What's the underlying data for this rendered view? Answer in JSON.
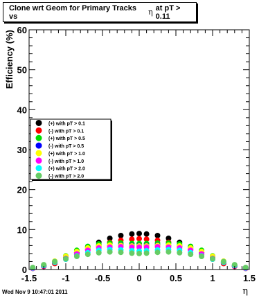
{
  "chart_data": {
    "type": "scatter",
    "title_prefix": "Clone wrt Geom for Primary Tracks vs",
    "title_var": "η",
    "title_suffix": "at pT > 0.11",
    "xlabel": "η",
    "ylabel": "Efficiency (%)",
    "xlim": [
      -1.5,
      1.5
    ],
    "ylim": [
      0,
      60
    ],
    "x_ticks": [
      -1.5,
      -1,
      -0.5,
      0,
      0.5,
      1,
      1.5
    ],
    "y_ticks": [
      0,
      10,
      20,
      30,
      40,
      50,
      60
    ],
    "x_tick_labels": [
      "-1.5",
      "-1",
      "-0.5",
      "0",
      "0.5",
      "1",
      "1.5"
    ],
    "y_tick_labels": [
      "0",
      "10",
      "20",
      "30",
      "40",
      "50",
      "60"
    ],
    "grid": false,
    "legend_position": "left-middle",
    "series": [
      {
        "name": "(+) with pT > 0.1",
        "color": "#000000",
        "points": [
          [
            -1.45,
            0.3
          ],
          [
            -1.3,
            0.8
          ],
          [
            -1.15,
            1.6
          ],
          [
            -1.0,
            2.8
          ],
          [
            -0.85,
            4.2
          ],
          [
            -0.7,
            5.6
          ],
          [
            -0.55,
            6.8
          ],
          [
            -0.4,
            7.8
          ],
          [
            -0.25,
            8.5
          ],
          [
            -0.1,
            8.9
          ],
          [
            0.0,
            9.0
          ],
          [
            0.1,
            8.9
          ],
          [
            0.25,
            8.5
          ],
          [
            0.4,
            7.8
          ],
          [
            0.55,
            6.8
          ],
          [
            0.7,
            5.6
          ],
          [
            0.85,
            4.2
          ],
          [
            1.0,
            2.8
          ],
          [
            1.15,
            1.6
          ],
          [
            1.3,
            0.8
          ],
          [
            1.45,
            0.3
          ]
        ]
      },
      {
        "name": "(-) with pT > 0.1",
        "color": "#ff0000",
        "points": [
          [
            -1.45,
            0.3
          ],
          [
            -1.3,
            0.8
          ],
          [
            -1.15,
            1.5
          ],
          [
            -1.0,
            2.6
          ],
          [
            -0.85,
            3.8
          ],
          [
            -0.7,
            5.0
          ],
          [
            -0.55,
            6.0
          ],
          [
            -0.4,
            6.8
          ],
          [
            -0.25,
            7.3
          ],
          [
            -0.1,
            7.6
          ],
          [
            0.0,
            7.7
          ],
          [
            0.1,
            7.6
          ],
          [
            0.25,
            7.3
          ],
          [
            0.4,
            6.8
          ],
          [
            0.55,
            6.0
          ],
          [
            0.7,
            5.0
          ],
          [
            0.85,
            3.8
          ],
          [
            1.0,
            2.6
          ],
          [
            1.15,
            1.5
          ],
          [
            1.3,
            0.8
          ],
          [
            1.45,
            0.3
          ]
        ]
      },
      {
        "name": "(+) with pT > 0.5",
        "color": "#00dd00",
        "points": [
          [
            -1.45,
            0.3
          ],
          [
            -1.3,
            1.0
          ],
          [
            -1.15,
            2.0
          ],
          [
            -1.0,
            3.4
          ],
          [
            -0.85,
            4.8
          ],
          [
            -0.7,
            5.8
          ],
          [
            -0.55,
            6.4
          ],
          [
            -0.4,
            6.6
          ],
          [
            -0.25,
            6.6
          ],
          [
            -0.1,
            6.5
          ],
          [
            0.0,
            6.5
          ],
          [
            0.1,
            6.5
          ],
          [
            0.25,
            6.6
          ],
          [
            0.4,
            6.6
          ],
          [
            0.55,
            6.4
          ],
          [
            0.7,
            5.8
          ],
          [
            0.85,
            4.8
          ],
          [
            1.0,
            3.4
          ],
          [
            1.15,
            2.0
          ],
          [
            1.3,
            1.0
          ],
          [
            1.45,
            0.3
          ]
        ]
      },
      {
        "name": "(-) with pT > 0.5",
        "color": "#0000ff",
        "points": [
          [
            -1.45,
            0.3
          ],
          [
            -1.3,
            0.9
          ],
          [
            -1.15,
            1.8
          ],
          [
            -1.0,
            3.0
          ],
          [
            -0.85,
            4.2
          ],
          [
            -0.7,
            5.2
          ],
          [
            -0.55,
            5.8
          ],
          [
            -0.4,
            6.0
          ],
          [
            -0.25,
            6.1
          ],
          [
            -0.1,
            6.0
          ],
          [
            0.0,
            6.0
          ],
          [
            0.1,
            6.0
          ],
          [
            0.25,
            6.1
          ],
          [
            0.4,
            6.0
          ],
          [
            0.55,
            5.8
          ],
          [
            0.7,
            5.2
          ],
          [
            0.85,
            4.2
          ],
          [
            1.0,
            3.0
          ],
          [
            1.15,
            1.8
          ],
          [
            1.3,
            0.9
          ],
          [
            1.45,
            0.3
          ]
        ]
      },
      {
        "name": "(+) with pT > 1.0",
        "color": "#ffff00",
        "points": [
          [
            -1.45,
            0.3
          ],
          [
            -1.3,
            1.1
          ],
          [
            -1.15,
            2.1
          ],
          [
            -1.0,
            3.3
          ],
          [
            -0.85,
            4.5
          ],
          [
            -0.7,
            5.4
          ],
          [
            -0.55,
            5.9
          ],
          [
            -0.4,
            6.1
          ],
          [
            -0.25,
            6.0
          ],
          [
            -0.1,
            5.9
          ],
          [
            0.0,
            5.9
          ],
          [
            0.1,
            5.9
          ],
          [
            0.25,
            6.0
          ],
          [
            0.4,
            6.1
          ],
          [
            0.55,
            5.9
          ],
          [
            0.7,
            5.4
          ],
          [
            0.85,
            4.5
          ],
          [
            1.0,
            3.3
          ],
          [
            1.15,
            2.1
          ],
          [
            1.3,
            1.1
          ],
          [
            1.45,
            0.3
          ]
        ]
      },
      {
        "name": "(-) with pT > 1.0",
        "color": "#ff00ff",
        "points": [
          [
            -1.45,
            0.3
          ],
          [
            -1.3,
            0.9
          ],
          [
            -1.15,
            1.8
          ],
          [
            -1.0,
            2.8
          ],
          [
            -0.85,
            3.9
          ],
          [
            -0.7,
            4.8
          ],
          [
            -0.55,
            5.4
          ],
          [
            -0.4,
            5.6
          ],
          [
            -0.25,
            5.7
          ],
          [
            -0.1,
            5.6
          ],
          [
            0.0,
            5.6
          ],
          [
            0.1,
            5.6
          ],
          [
            0.25,
            5.7
          ],
          [
            0.4,
            5.6
          ],
          [
            0.55,
            5.4
          ],
          [
            0.7,
            4.8
          ],
          [
            0.85,
            3.9
          ],
          [
            1.0,
            2.8
          ],
          [
            1.15,
            1.8
          ],
          [
            1.3,
            0.9
          ],
          [
            1.45,
            0.3
          ]
        ]
      },
      {
        "name": "(+) with pT > 2.0",
        "color": "#00ffff",
        "points": [
          [
            -1.45,
            0.4
          ],
          [
            -1.3,
            1.0
          ],
          [
            -1.15,
            1.8
          ],
          [
            -1.0,
            2.6
          ],
          [
            -0.85,
            3.4
          ],
          [
            -0.7,
            4.2
          ],
          [
            -0.55,
            4.8
          ],
          [
            -0.4,
            5.0
          ],
          [
            -0.25,
            4.9
          ],
          [
            -0.1,
            4.7
          ],
          [
            0.0,
            4.6
          ],
          [
            0.1,
            4.7
          ],
          [
            0.25,
            4.9
          ],
          [
            0.4,
            5.0
          ],
          [
            0.55,
            4.8
          ],
          [
            0.7,
            4.2
          ],
          [
            0.85,
            3.4
          ],
          [
            1.0,
            2.6
          ],
          [
            1.15,
            1.8
          ],
          [
            1.3,
            1.0
          ],
          [
            1.45,
            0.4
          ]
        ]
      },
      {
        "name": "(-) with pT > 2.0",
        "color": "#66cc66",
        "points": [
          [
            -1.45,
            0.5
          ],
          [
            -1.3,
            1.2
          ],
          [
            -1.15,
            2.0
          ],
          [
            -1.0,
            2.7
          ],
          [
            -0.85,
            3.3
          ],
          [
            -0.7,
            3.8
          ],
          [
            -0.55,
            4.2
          ],
          [
            -0.4,
            4.4
          ],
          [
            -0.25,
            4.3
          ],
          [
            -0.1,
            4.1
          ],
          [
            0.0,
            4.0
          ],
          [
            0.1,
            4.1
          ],
          [
            0.25,
            4.3
          ],
          [
            0.4,
            4.4
          ],
          [
            0.55,
            4.2
          ],
          [
            0.7,
            3.8
          ],
          [
            0.85,
            3.3
          ],
          [
            1.0,
            2.7
          ],
          [
            1.15,
            2.0
          ],
          [
            1.3,
            1.2
          ],
          [
            1.45,
            0.5
          ]
        ]
      }
    ]
  },
  "footer": {
    "datetime": "Wed Nov  9 10:47:01 2011"
  }
}
